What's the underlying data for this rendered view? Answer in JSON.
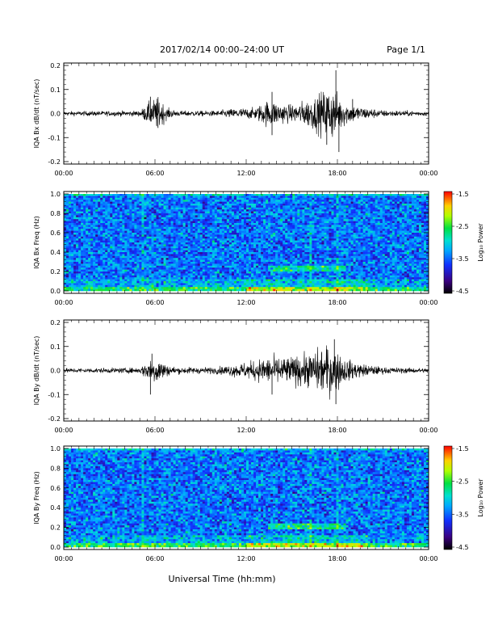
{
  "header": {
    "title": "2017/02/14   00:00–24:00 UT",
    "page": "Page 1/1"
  },
  "footer": {
    "xlabel": "Universal Time (hh:mm)"
  },
  "x_ticks": [
    "00:00",
    "06:00",
    "12:00",
    "18:00",
    "00:00"
  ],
  "chart_data": [
    {
      "type": "line",
      "id": "bx-dbdt",
      "ylabel": "IQA Bx dB/dt (nT/sec)",
      "ylim": [
        -0.2,
        0.2
      ],
      "yticks": [
        "0.2",
        "0.1",
        "0.0",
        "-0.1",
        "-0.2"
      ],
      "xlim_hours": [
        0,
        24
      ],
      "envelope": {
        "x_hours": [
          0,
          5,
          5.6,
          6.2,
          6.8,
          7.5,
          10,
          11.5,
          12.5,
          13.5,
          14.2,
          15,
          16,
          16.5,
          17,
          17.6,
          18.2,
          18.6,
          19.5,
          21,
          24
        ],
        "amplitude": [
          0.008,
          0.01,
          0.04,
          0.06,
          0.02,
          0.01,
          0.01,
          0.02,
          0.02,
          0.05,
          0.04,
          0.03,
          0.05,
          0.06,
          0.08,
          0.1,
          0.06,
          0.04,
          0.025,
          0.012,
          0.008
        ]
      },
      "peaks": [
        {
          "x_hours": 5.7,
          "y": 0.07
        },
        {
          "x_hours": 6.2,
          "y": -0.06
        },
        {
          "x_hours": 13.7,
          "y": 0.09
        },
        {
          "x_hours": 13.7,
          "y": -0.09
        },
        {
          "x_hours": 17.9,
          "y": 0.18
        },
        {
          "x_hours": 18.1,
          "y": -0.16
        },
        {
          "x_hours": 17.3,
          "y": -0.13
        },
        {
          "x_hours": 19.0,
          "y": 0.06
        }
      ]
    },
    {
      "type": "heatmap",
      "id": "bx-spectrogram",
      "ylabel": "IQA Bx Freq (Hz)",
      "ylim": [
        0,
        1.0
      ],
      "yticks": [
        "1.0",
        "0.8",
        "0.6",
        "0.4",
        "0.2",
        "0.0"
      ],
      "xlim_hours": [
        0,
        24
      ],
      "colorbar": {
        "label": "Log₁₀ Power",
        "range": [
          -4.5,
          -1.5
        ],
        "ticks": [
          "-1.5",
          "-2.5",
          "-3.5",
          "-4.5"
        ]
      },
      "features": {
        "band_hours": [
          13.5,
          18.5
        ],
        "band_freq_hz": 0.23,
        "low_freq_enhancement_hours": [
          12,
          20
        ],
        "vertical_lines_hours": [
          5.2,
          16.2,
          18.0
        ]
      }
    },
    {
      "type": "line",
      "id": "by-dbdt",
      "ylabel": "IQA By dB/dt (nT/sec)",
      "ylim": [
        -0.2,
        0.2
      ],
      "yticks": [
        "0.2",
        "0.1",
        "0.0",
        "-0.1",
        "-0.2"
      ],
      "xlim_hours": [
        0,
        24
      ],
      "envelope": {
        "x_hours": [
          0,
          5,
          5.6,
          6.2,
          6.8,
          7.5,
          10,
          11.5,
          12.5,
          13.5,
          14.2,
          15,
          16,
          16.5,
          17,
          17.6,
          18.2,
          18.6,
          19.5,
          21,
          24
        ],
        "amplitude": [
          0.008,
          0.01,
          0.04,
          0.05,
          0.02,
          0.012,
          0.012,
          0.025,
          0.035,
          0.05,
          0.05,
          0.05,
          0.06,
          0.07,
          0.085,
          0.09,
          0.06,
          0.04,
          0.025,
          0.012,
          0.008
        ]
      },
      "peaks": [
        {
          "x_hours": 5.8,
          "y": 0.07
        },
        {
          "x_hours": 5.7,
          "y": -0.1
        },
        {
          "x_hours": 13.7,
          "y": -0.1
        },
        {
          "x_hours": 17.8,
          "y": 0.13
        },
        {
          "x_hours": 17.9,
          "y": -0.14
        }
      ]
    },
    {
      "type": "heatmap",
      "id": "by-spectrogram",
      "ylabel": "IQA By Freq (Hz)",
      "ylim": [
        0,
        1.0
      ],
      "yticks": [
        "1.0",
        "0.8",
        "0.6",
        "0.4",
        "0.2",
        "0.0"
      ],
      "xlim_hours": [
        0,
        24
      ],
      "colorbar": {
        "label": "Log₁₀ Power",
        "range": [
          -4.5,
          -1.5
        ],
        "ticks": [
          "-1.5",
          "-2.5",
          "-3.5",
          "-4.5"
        ]
      },
      "features": {
        "band_hours": [
          13.5,
          18.5
        ],
        "band_freq_hz": 0.21,
        "low_freq_enhancement_hours": [
          12,
          20
        ],
        "vertical_lines_hours": [
          5.2,
          16.2,
          18.0
        ]
      }
    }
  ]
}
